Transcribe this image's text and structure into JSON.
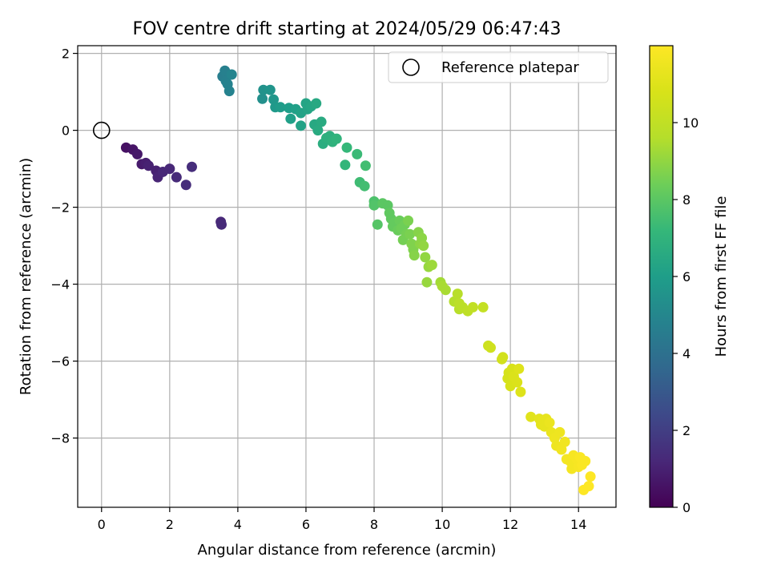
{
  "chart_data": {
    "type": "scatter",
    "title": "FOV centre drift starting at 2024/05/29 06:47:43",
    "xlabel": "Angular distance from reference (arcmin)",
    "ylabel": "Rotation from reference (arcmin)",
    "xlim": [
      -0.7,
      15.1
    ],
    "ylim": [
      -9.8,
      2.2
    ],
    "xticks": [
      0,
      2,
      4,
      6,
      8,
      10,
      12,
      14
    ],
    "yticks": [
      2,
      0,
      -2,
      -4,
      -6,
      -8
    ],
    "grid": true,
    "legend": {
      "label": "Reference platepar",
      "placement": "top-right"
    },
    "reference_point": {
      "x": 0,
      "y": 0
    },
    "colorbar": {
      "label": "Hours from first FF file",
      "colormap": "viridis",
      "range": [
        0,
        12
      ],
      "ticks": [
        0,
        2,
        4,
        6,
        8,
        10
      ]
    },
    "points": [
      {
        "x": 0.72,
        "y": -0.45,
        "h": 0.5
      },
      {
        "x": 0.92,
        "y": -0.5,
        "h": 0.6
      },
      {
        "x": 1.05,
        "y": -0.62,
        "h": 0.7
      },
      {
        "x": 1.18,
        "y": -0.88,
        "h": 0.8
      },
      {
        "x": 1.3,
        "y": -0.85,
        "h": 0.9
      },
      {
        "x": 1.38,
        "y": -0.92,
        "h": 1.0
      },
      {
        "x": 1.6,
        "y": -1.05,
        "h": 1.0
      },
      {
        "x": 1.65,
        "y": -1.22,
        "h": 1.1
      },
      {
        "x": 1.8,
        "y": -1.08,
        "h": 1.2
      },
      {
        "x": 2.0,
        "y": -1.0,
        "h": 1.2
      },
      {
        "x": 2.2,
        "y": -1.22,
        "h": 1.3
      },
      {
        "x": 2.48,
        "y": -1.42,
        "h": 1.4
      },
      {
        "x": 2.65,
        "y": -0.95,
        "h": 1.4
      },
      {
        "x": 3.5,
        "y": -2.38,
        "h": 1.2
      },
      {
        "x": 3.52,
        "y": -2.45,
        "h": 1.3
      },
      {
        "x": 3.55,
        "y": 1.4,
        "h": 4.6
      },
      {
        "x": 3.62,
        "y": 1.55,
        "h": 4.7
      },
      {
        "x": 3.65,
        "y": 1.28,
        "h": 4.7
      },
      {
        "x": 3.7,
        "y": 1.2,
        "h": 4.8
      },
      {
        "x": 3.75,
        "y": 1.02,
        "h": 4.8
      },
      {
        "x": 3.82,
        "y": 1.45,
        "h": 4.9
      },
      {
        "x": 4.72,
        "y": 0.82,
        "h": 5.4
      },
      {
        "x": 4.75,
        "y": 1.05,
        "h": 5.5
      },
      {
        "x": 4.95,
        "y": 1.05,
        "h": 5.6
      },
      {
        "x": 5.05,
        "y": 0.8,
        "h": 5.7
      },
      {
        "x": 5.1,
        "y": 0.6,
        "h": 5.8
      },
      {
        "x": 5.25,
        "y": 0.6,
        "h": 5.9
      },
      {
        "x": 5.5,
        "y": 0.58,
        "h": 6.0
      },
      {
        "x": 5.55,
        "y": 0.3,
        "h": 6.1
      },
      {
        "x": 5.7,
        "y": 0.55,
        "h": 6.1
      },
      {
        "x": 5.85,
        "y": 0.45,
        "h": 6.2
      },
      {
        "x": 5.85,
        "y": 0.12,
        "h": 6.2
      },
      {
        "x": 6.0,
        "y": 0.7,
        "h": 6.3
      },
      {
        "x": 6.05,
        "y": 0.55,
        "h": 6.3
      },
      {
        "x": 6.15,
        "y": 0.62,
        "h": 6.4
      },
      {
        "x": 6.25,
        "y": 0.15,
        "h": 6.5
      },
      {
        "x": 6.3,
        "y": 0.7,
        "h": 6.5
      },
      {
        "x": 6.35,
        "y": 0.0,
        "h": 6.6
      },
      {
        "x": 6.45,
        "y": 0.22,
        "h": 6.6
      },
      {
        "x": 6.5,
        "y": -0.35,
        "h": 6.7
      },
      {
        "x": 6.6,
        "y": -0.2,
        "h": 6.8
      },
      {
        "x": 6.7,
        "y": -0.15,
        "h": 6.8
      },
      {
        "x": 6.78,
        "y": -0.3,
        "h": 6.9
      },
      {
        "x": 6.9,
        "y": -0.22,
        "h": 7.0
      },
      {
        "x": 7.15,
        "y": -0.9,
        "h": 7.1
      },
      {
        "x": 7.2,
        "y": -0.45,
        "h": 7.2
      },
      {
        "x": 7.5,
        "y": -0.62,
        "h": 7.3
      },
      {
        "x": 7.58,
        "y": -1.35,
        "h": 7.4
      },
      {
        "x": 7.72,
        "y": -1.45,
        "h": 7.5
      },
      {
        "x": 7.75,
        "y": -0.92,
        "h": 7.5
      },
      {
        "x": 8.0,
        "y": -1.85,
        "h": 7.7
      },
      {
        "x": 8.0,
        "y": -1.95,
        "h": 7.8
      },
      {
        "x": 8.1,
        "y": -2.45,
        "h": 7.9
      },
      {
        "x": 8.25,
        "y": -1.9,
        "h": 8.0
      },
      {
        "x": 8.4,
        "y": -1.95,
        "h": 8.0
      },
      {
        "x": 8.45,
        "y": -2.15,
        "h": 8.1
      },
      {
        "x": 8.5,
        "y": -2.3,
        "h": 8.1
      },
      {
        "x": 8.55,
        "y": -2.5,
        "h": 8.2
      },
      {
        "x": 8.6,
        "y": -2.4,
        "h": 8.2
      },
      {
        "x": 8.7,
        "y": -2.6,
        "h": 8.3
      },
      {
        "x": 8.75,
        "y": -2.35,
        "h": 8.3
      },
      {
        "x": 8.8,
        "y": -2.55,
        "h": 8.4
      },
      {
        "x": 8.9,
        "y": -2.45,
        "h": 8.4
      },
      {
        "x": 8.85,
        "y": -2.85,
        "h": 8.5
      },
      {
        "x": 8.95,
        "y": -2.7,
        "h": 8.5
      },
      {
        "x": 9.0,
        "y": -2.35,
        "h": 8.6
      },
      {
        "x": 9.05,
        "y": -2.7,
        "h": 8.6
      },
      {
        "x": 9.1,
        "y": -2.95,
        "h": 8.7
      },
      {
        "x": 9.15,
        "y": -3.1,
        "h": 8.7
      },
      {
        "x": 9.18,
        "y": -3.25,
        "h": 8.8
      },
      {
        "x": 9.3,
        "y": -2.65,
        "h": 8.8
      },
      {
        "x": 9.35,
        "y": -2.95,
        "h": 8.9
      },
      {
        "x": 9.4,
        "y": -2.8,
        "h": 8.9
      },
      {
        "x": 9.45,
        "y": -3.0,
        "h": 9.0
      },
      {
        "x": 9.5,
        "y": -3.3,
        "h": 9.0
      },
      {
        "x": 9.55,
        "y": -3.95,
        "h": 9.1
      },
      {
        "x": 9.6,
        "y": -3.55,
        "h": 9.1
      },
      {
        "x": 9.7,
        "y": -3.5,
        "h": 9.2
      },
      {
        "x": 9.95,
        "y": -3.95,
        "h": 9.3
      },
      {
        "x": 10.0,
        "y": -4.05,
        "h": 9.4
      },
      {
        "x": 10.1,
        "y": -4.15,
        "h": 9.4
      },
      {
        "x": 10.35,
        "y": -4.45,
        "h": 9.6
      },
      {
        "x": 10.45,
        "y": -4.25,
        "h": 9.7
      },
      {
        "x": 10.5,
        "y": -4.65,
        "h": 9.7
      },
      {
        "x": 10.5,
        "y": -4.5,
        "h": 9.8
      },
      {
        "x": 10.6,
        "y": -4.6,
        "h": 9.8
      },
      {
        "x": 10.75,
        "y": -4.7,
        "h": 9.9
      },
      {
        "x": 10.9,
        "y": -4.6,
        "h": 10.0
      },
      {
        "x": 11.2,
        "y": -4.6,
        "h": 10.1
      },
      {
        "x": 11.35,
        "y": -5.6,
        "h": 10.4
      },
      {
        "x": 11.42,
        "y": -5.65,
        "h": 10.5
      },
      {
        "x": 11.75,
        "y": -5.95,
        "h": 10.6
      },
      {
        "x": 11.78,
        "y": -5.9,
        "h": 10.6
      },
      {
        "x": 11.92,
        "y": -6.45,
        "h": 10.7
      },
      {
        "x": 11.95,
        "y": -6.3,
        "h": 10.7
      },
      {
        "x": 12.0,
        "y": -6.65,
        "h": 10.8
      },
      {
        "x": 12.05,
        "y": -6.2,
        "h": 10.8
      },
      {
        "x": 12.1,
        "y": -6.4,
        "h": 10.9
      },
      {
        "x": 12.2,
        "y": -6.55,
        "h": 10.9
      },
      {
        "x": 12.25,
        "y": -6.2,
        "h": 11.0
      },
      {
        "x": 12.3,
        "y": -6.8,
        "h": 11.0
      },
      {
        "x": 12.6,
        "y": -7.45,
        "h": 11.1
      },
      {
        "x": 12.85,
        "y": -7.5,
        "h": 11.2
      },
      {
        "x": 12.9,
        "y": -7.65,
        "h": 11.2
      },
      {
        "x": 12.95,
        "y": -7.55,
        "h": 11.3
      },
      {
        "x": 13.0,
        "y": -7.7,
        "h": 11.3
      },
      {
        "x": 13.05,
        "y": -7.5,
        "h": 11.3
      },
      {
        "x": 13.15,
        "y": -7.6,
        "h": 11.4
      },
      {
        "x": 13.2,
        "y": -7.85,
        "h": 11.4
      },
      {
        "x": 13.3,
        "y": -8.0,
        "h": 11.5
      },
      {
        "x": 13.35,
        "y": -8.2,
        "h": 11.5
      },
      {
        "x": 13.45,
        "y": -7.85,
        "h": 11.5
      },
      {
        "x": 13.5,
        "y": -8.3,
        "h": 11.6
      },
      {
        "x": 13.6,
        "y": -8.1,
        "h": 11.6
      },
      {
        "x": 13.65,
        "y": -8.55,
        "h": 11.7
      },
      {
        "x": 13.75,
        "y": -8.6,
        "h": 11.7
      },
      {
        "x": 13.8,
        "y": -8.8,
        "h": 11.7
      },
      {
        "x": 13.85,
        "y": -8.45,
        "h": 11.8
      },
      {
        "x": 13.95,
        "y": -8.55,
        "h": 11.8
      },
      {
        "x": 14.0,
        "y": -8.75,
        "h": 11.8
      },
      {
        "x": 14.05,
        "y": -8.5,
        "h": 11.9
      },
      {
        "x": 14.1,
        "y": -8.7,
        "h": 11.9
      },
      {
        "x": 14.2,
        "y": -8.6,
        "h": 11.9
      },
      {
        "x": 14.15,
        "y": -9.35,
        "h": 12.0
      },
      {
        "x": 14.3,
        "y": -9.25,
        "h": 12.0
      },
      {
        "x": 14.35,
        "y": -9.0,
        "h": 12.0
      }
    ]
  }
}
